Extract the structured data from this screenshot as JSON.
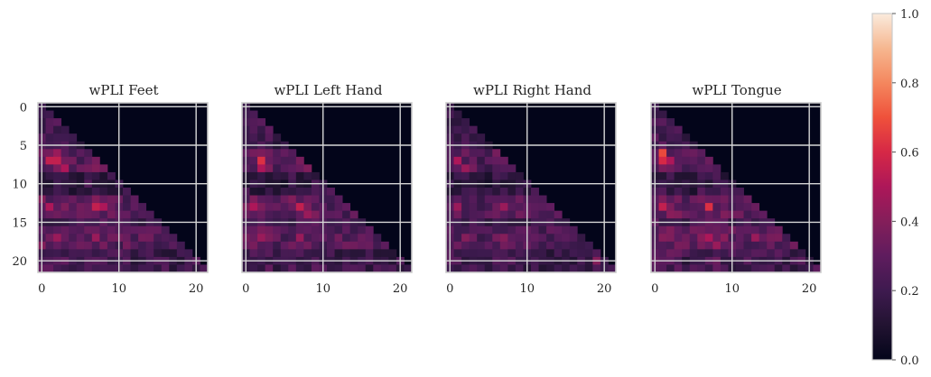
{
  "chart_data": {
    "type": "heatmap",
    "colormap": "rocket",
    "vmin": 0.0,
    "vmax": 1.0,
    "matrix_size": 22,
    "mask": "upper-triangle",
    "grid": true,
    "colorbar": {
      "ticks": [
        0.0,
        0.2,
        0.4,
        0.6,
        0.8,
        1.0
      ],
      "tick_labels": [
        "0.0",
        "0.2",
        "0.4",
        "0.6",
        "0.8",
        "1.0"
      ]
    },
    "panels": [
      {
        "title": "wPLI Feet",
        "xticks": [
          0,
          10,
          20
        ],
        "yticks": [
          0,
          5,
          10,
          15,
          20
        ],
        "seed": 11,
        "gain": 1.0,
        "hot_cells": [
          [
            7,
            1,
            0.55
          ],
          [
            7,
            2,
            0.55
          ],
          [
            8,
            3,
            0.5
          ],
          [
            6,
            2,
            0.45
          ],
          [
            13,
            1,
            0.5
          ],
          [
            13,
            7,
            0.55
          ],
          [
            13,
            8,
            0.5
          ],
          [
            17,
            7,
            0.45
          ],
          [
            17,
            2,
            0.45
          ],
          [
            17,
            14,
            0.35
          ]
        ]
      },
      {
        "title": "wPLI Left Hand",
        "xticks": [
          0,
          10,
          20
        ],
        "yticks": [
          0,
          5,
          10,
          15,
          20
        ],
        "seed": 23,
        "gain": 0.98,
        "hot_cells": [
          [
            7,
            2,
            0.62
          ],
          [
            8,
            2,
            0.5
          ],
          [
            13,
            7,
            0.55
          ],
          [
            13,
            1,
            0.5
          ],
          [
            14,
            8,
            0.45
          ],
          [
            17,
            7,
            0.45
          ],
          [
            17,
            2,
            0.45
          ],
          [
            18,
            12,
            0.3
          ]
        ]
      },
      {
        "title": "wPLI Right Hand",
        "xticks": [
          0,
          10,
          20
        ],
        "yticks": [
          0,
          5,
          10,
          15,
          20
        ],
        "seed": 37,
        "gain": 0.9,
        "hot_cells": [
          [
            7,
            1,
            0.5
          ],
          [
            8,
            2,
            0.45
          ],
          [
            13,
            1,
            0.45
          ],
          [
            13,
            7,
            0.45
          ],
          [
            17,
            7,
            0.4
          ],
          [
            17,
            2,
            0.4
          ],
          [
            20,
            19,
            0.4
          ]
        ]
      },
      {
        "title": "wPLI Tongue",
        "xticks": [
          0,
          10,
          20
        ],
        "yticks": [
          0,
          5,
          10,
          15,
          20
        ],
        "seed": 53,
        "gain": 1.05,
        "hot_cells": [
          [
            6,
            1,
            0.68
          ],
          [
            7,
            1,
            0.6
          ],
          [
            7,
            2,
            0.5
          ],
          [
            13,
            7,
            0.62
          ],
          [
            13,
            1,
            0.55
          ],
          [
            17,
            7,
            0.5
          ],
          [
            17,
            13,
            0.45
          ],
          [
            18,
            8,
            0.45
          ]
        ]
      }
    ]
  }
}
